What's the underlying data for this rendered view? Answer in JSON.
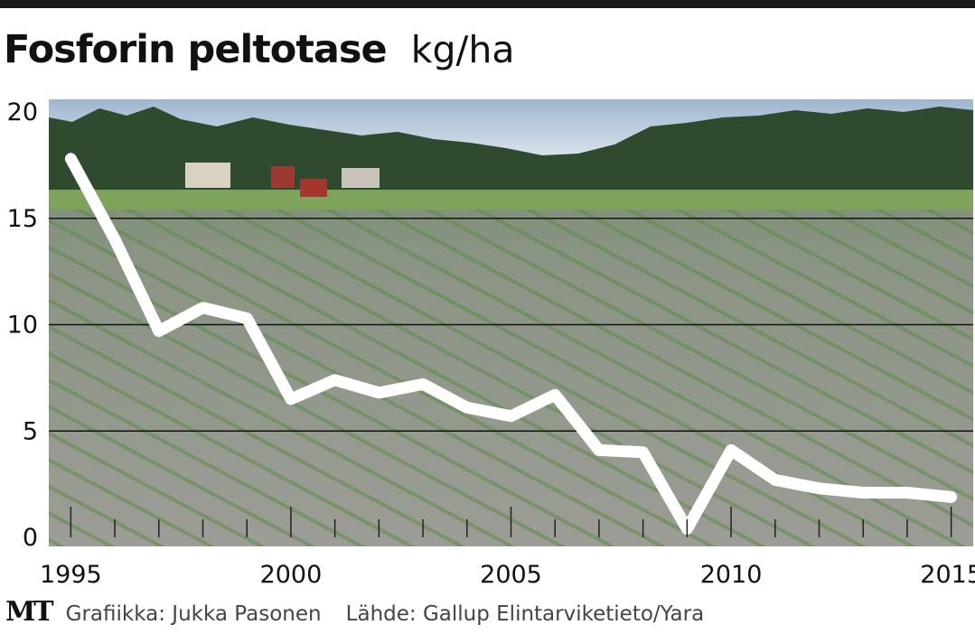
{
  "header": {
    "title": "Fosforin peltotase",
    "unit": "kg/ha"
  },
  "footer": {
    "logo": "MT",
    "credit": "Grafiikka: Jukka Pasonen",
    "source": "Lähde: Gallup Elintarviketieto/Yara"
  },
  "chart_data": {
    "type": "line",
    "title": "Fosforin peltotase",
    "ylabel": "kg/ha",
    "xlabel": "",
    "xlim": [
      1994.5,
      2015.5
    ],
    "ylim": [
      0,
      20
    ],
    "x_ticks": [
      1995,
      2000,
      2005,
      2010,
      2015
    ],
    "y_ticks": [
      0,
      5,
      10,
      15,
      20
    ],
    "grid": "horizontal",
    "background": "photo of a sprouting field with forest and farm buildings",
    "line_color": "#ffffff",
    "series": [
      {
        "x": [
          1995,
          1996,
          1997,
          1998,
          1999,
          2000,
          2001,
          2002,
          2003,
          2004,
          2005,
          2006,
          2007,
          2008,
          2009,
          2010,
          2011,
          2012,
          2013,
          2014,
          2015
        ],
        "values": [
          17.8,
          14.0,
          9.7,
          10.8,
          10.3,
          6.5,
          7.4,
          6.8,
          7.2,
          6.1,
          5.7,
          6.7,
          4.1,
          4.0,
          0.4,
          4.1,
          2.7,
          2.3,
          2.1,
          2.1,
          1.9
        ]
      }
    ]
  }
}
